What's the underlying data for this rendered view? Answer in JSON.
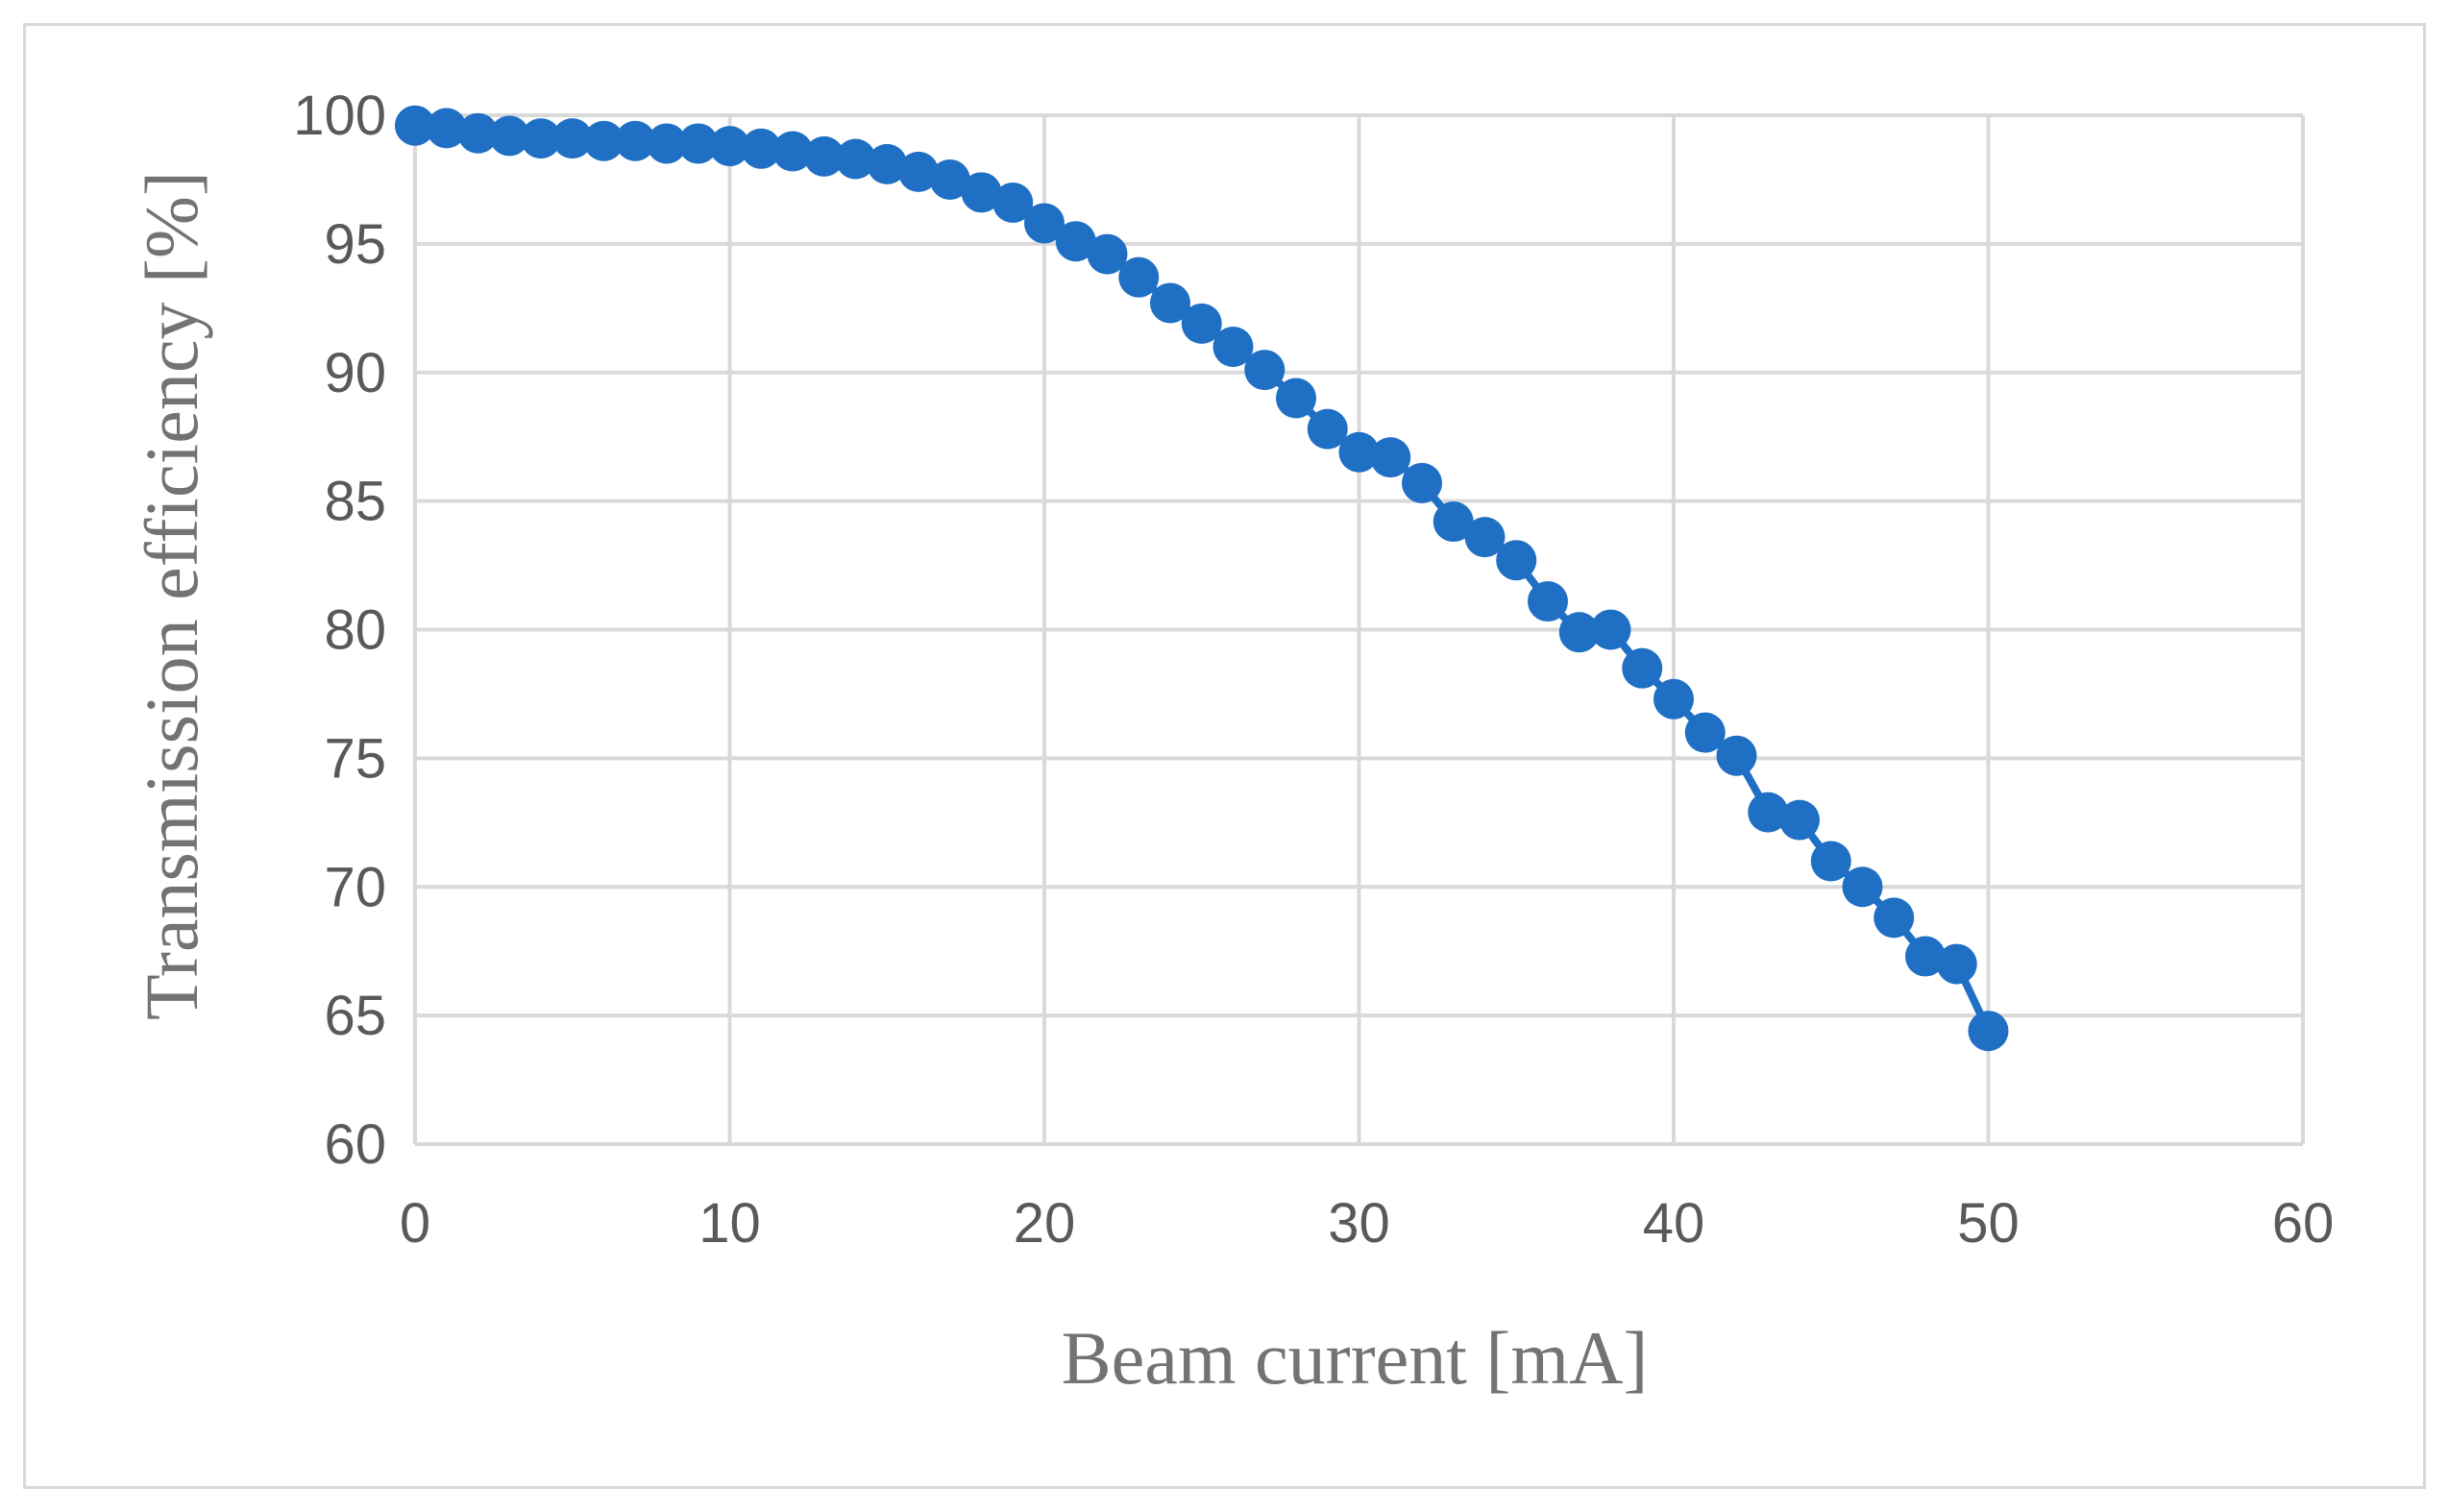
{
  "chart_data": {
    "type": "line",
    "title": "",
    "xlabel": "Beam current [mA]",
    "ylabel": "Transmission efficiency [%]",
    "xlim": [
      0,
      60
    ],
    "ylim": [
      60,
      100
    ],
    "x_ticks": [
      0,
      10,
      20,
      30,
      40,
      50,
      60
    ],
    "y_ticks": [
      60,
      65,
      70,
      75,
      80,
      85,
      90,
      95,
      100
    ],
    "grid": true,
    "legend": "none",
    "series": [
      {
        "name": "Transmission efficiency",
        "color": "#1f6fc5",
        "x": [
          0,
          1,
          2,
          3,
          4,
          5,
          6,
          7,
          8,
          9,
          10,
          11,
          12,
          13,
          14,
          15,
          16,
          17,
          18,
          19,
          20,
          21,
          22,
          23,
          24,
          25,
          26,
          27,
          28,
          29,
          30,
          31,
          32,
          33,
          34,
          35,
          36,
          37,
          38,
          39,
          40,
          41,
          42,
          43,
          44,
          45,
          46,
          47,
          48,
          49,
          50
        ],
        "y": [
          99.6,
          99.5,
          99.3,
          99.2,
          99.1,
          99.1,
          99.0,
          99.0,
          98.9,
          98.9,
          98.8,
          98.7,
          98.6,
          98.4,
          98.3,
          98.1,
          97.8,
          97.5,
          97.0,
          96.6,
          95.8,
          95.1,
          94.6,
          93.7,
          92.7,
          91.9,
          91.0,
          90.1,
          89.0,
          87.8,
          86.9,
          86.7,
          85.7,
          84.2,
          83.6,
          82.7,
          81.1,
          79.9,
          80.0,
          78.5,
          77.3,
          76.0,
          75.1,
          72.9,
          72.6,
          71.0,
          70.0,
          68.8,
          67.3,
          67.0,
          64.4
        ]
      }
    ]
  }
}
